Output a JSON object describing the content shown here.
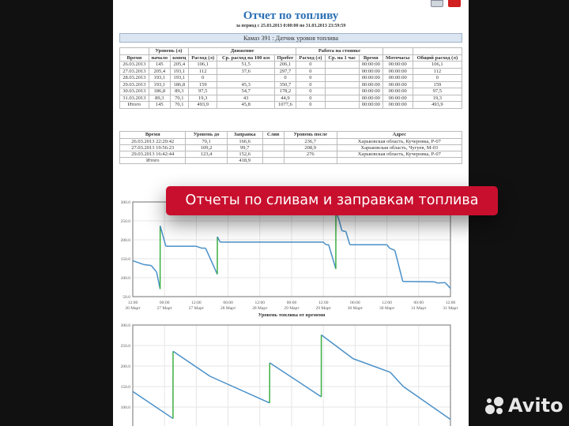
{
  "report": {
    "title": "Отчет по топливу",
    "period": "за период с 25.03.2013 0:00:00 по 31.03.2013 23:59:59",
    "caption": "Камаз 391 : Датчик уровня топлива",
    "icons": [
      "print-icon",
      "pdf-icon"
    ]
  },
  "table1": {
    "groups": [
      "Уровень (л)",
      "Движение",
      "Работа на стоянке"
    ],
    "headers": [
      "Время",
      "начало",
      "конец",
      "Расход (л)",
      "Ср. расход на 100 км",
      "Пробег",
      "Расход (л)",
      "Ср. на 1 час",
      "Время",
      "Моточасы",
      "Общий расход (л)"
    ],
    "rows": [
      [
        "26.03.2013",
        "145",
        "205,4",
        "106,1",
        "51,5",
        "206,1",
        "0",
        "",
        "00:00:00",
        "00:00:00",
        "106,1"
      ],
      [
        "27.03.2013",
        "205,4",
        "193,1",
        "112",
        "37,6",
        "297,7",
        "0",
        "",
        "00:00:00",
        "00:00:00",
        "112"
      ],
      [
        "28.03.2013",
        "193,1",
        "193,1",
        "0",
        "",
        "0",
        "0",
        "",
        "00:00:00",
        "00:00:00",
        "0"
      ],
      [
        "29.03.2013",
        "193,1",
        "186,8",
        "159",
        "45,3",
        "350,7",
        "0",
        "",
        "00:00:00",
        "00:00:00",
        "159"
      ],
      [
        "30.03.2013",
        "186,8",
        "89,3",
        "97,5",
        "54,7",
        "178,2",
        "0",
        "",
        "00:00:00",
        "00:00:00",
        "97,5"
      ],
      [
        "31.03.2013",
        "89,3",
        "70,1",
        "19,3",
        "43",
        "44,9",
        "0",
        "",
        "00:00:00",
        "00:00:00",
        "19,3"
      ],
      [
        "Итого",
        "145",
        "70,1",
        "493,9",
        "45,8",
        "1077,6",
        "0",
        "",
        "00:00:00",
        "00:00:00",
        "493,9"
      ]
    ]
  },
  "table2": {
    "headers": [
      "Время",
      "Уровень до",
      "Заправка",
      "Слив",
      "Уровень после",
      "Адрес"
    ],
    "rows": [
      [
        "26.03.2013 22:20:42",
        "70,1",
        "166,6",
        "",
        "236,7",
        "Харьковская область, Кучеровка, Р-07"
      ],
      [
        "27.03.2013 19:56:23",
        "109,2",
        "99,7",
        "",
        "208,9",
        "Харьковская область, Чугуев, М-03"
      ],
      [
        "29.03.2013 16:42:44",
        "123,4",
        "152,6",
        "",
        "276",
        "Харьковская область, Кучеровка, Р-07"
      ],
      [
        "Итого",
        "",
        "418,9",
        "",
        "",
        ""
      ]
    ]
  },
  "banner": "Отчеты по сливам и заправкам топлива",
  "watermark": "Avito",
  "chart_data": [
    {
      "type": "line",
      "title": "Уровень топлива от времени",
      "ylim": [
        50,
        300
      ],
      "yticks": [
        "50.0",
        "100.0",
        "150.0",
        "200.0",
        "250.0",
        "300.0"
      ],
      "xticks": [
        [
          "12:00",
          "26 Март"
        ],
        [
          "00:00",
          "27 Март"
        ],
        [
          "12:00",
          "27 Март"
        ],
        [
          "00:00",
          "28 Март"
        ],
        [
          "12:00",
          "28 Март"
        ],
        [
          "00:00",
          "29 Март"
        ],
        [
          "12:00",
          "29 Март"
        ],
        [
          "00:00",
          "30 Март"
        ],
        [
          "12:00",
          "30 Март"
        ],
        [
          "00:00",
          "31 Март"
        ],
        [
          "12:00",
          "31 Март"
        ]
      ],
      "xrange": [
        "26.03 12:00",
        "31.03 12:00"
      ],
      "grid": true,
      "colors": {
        "level": "#4a90c8",
        "refuel": "#3cb043"
      },
      "points": [
        [
          "26.03 12:00",
          145
        ],
        [
          "26.03 16:00",
          135
        ],
        [
          "26.03 19:00",
          132
        ],
        [
          "26.03 21:00",
          115
        ],
        [
          "26.03 22:20",
          70
        ],
        [
          "26.03 22:21",
          237
        ],
        [
          "27.03 00:30",
          183
        ],
        [
          "27.03 12:00",
          183
        ],
        [
          "27.03 14:00",
          178
        ],
        [
          "27.03 15:30",
          178
        ],
        [
          "27.03 19:56",
          109
        ],
        [
          "27.03 19:57",
          208
        ],
        [
          "27.03 21:00",
          194
        ],
        [
          "29.03 12:00",
          194
        ],
        [
          "29.03 13:00",
          187
        ],
        [
          "29.03 14:00",
          187
        ],
        [
          "29.03 16:42",
          123
        ],
        [
          "29.03 16:43",
          276
        ],
        [
          "29.03 18:00",
          250
        ],
        [
          "29.03 19:00",
          224
        ],
        [
          "29.03 20:30",
          222
        ],
        [
          "29.03 22:00",
          187
        ],
        [
          "30.03 12:00",
          187
        ],
        [
          "30.03 13:00",
          178
        ],
        [
          "30.03 15:00",
          172
        ],
        [
          "30.03 18:00",
          90
        ],
        [
          "31.03 06:00",
          89
        ],
        [
          "31.03 07:00",
          86
        ],
        [
          "31.03 10:00",
          87
        ],
        [
          "31.03 12:00",
          72
        ]
      ]
    },
    {
      "type": "line",
      "ylim": [
        50,
        300
      ],
      "yticks": [
        "50.0",
        "100.0",
        "150.0",
        "200.0",
        "250.0",
        "300.0"
      ],
      "grid": true,
      "xrange": [
        "26.03 12:00",
        "31.03 12:00"
      ],
      "colors": {
        "level": "#4a90c8",
        "refuel": "#3cb043"
      },
      "points": [
        [
          "26.03 12:00",
          138
        ],
        [
          "27.03 03:12",
          72
        ],
        [
          "27.03 03:13",
          236
        ],
        [
          "27.03 17:12",
          175
        ],
        [
          "28.03 15:42",
          110
        ],
        [
          "28.03 15:43",
          208
        ],
        [
          "29.03 11:12",
          125
        ],
        [
          "29.03 11:13",
          276
        ],
        [
          "29.03 23:12",
          218
        ],
        [
          "30.03 13:12",
          185
        ],
        [
          "30.03 18:12",
          150
        ],
        [
          "31.03 12:00",
          70
        ]
      ]
    }
  ]
}
